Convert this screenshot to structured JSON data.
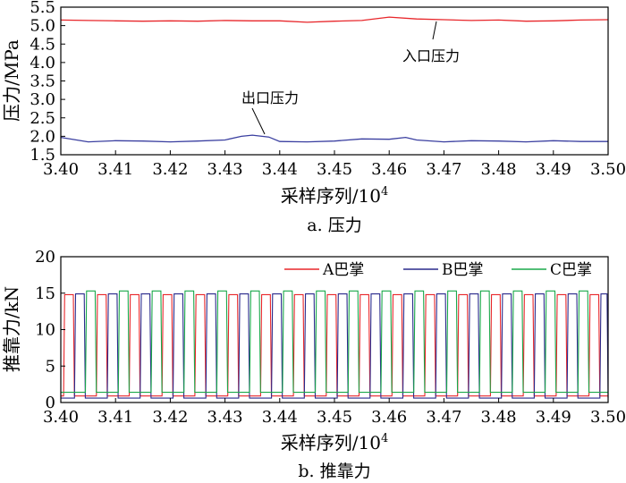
{
  "colors": {
    "inlet": "#e8262a",
    "outlet": "#3a3fa0",
    "shoe_a": "#e8262a",
    "shoe_b": "#2a2a8c",
    "shoe_c": "#1aa84a"
  },
  "chart_data": [
    {
      "type": "line",
      "caption": "a. 压力",
      "xlabel": "采样序列/10",
      "xlabel_exp": "4",
      "ylabel": "压力/MPa",
      "xlim": [
        3.4,
        3.5
      ],
      "ylim": [
        1.5,
        5.5
      ],
      "x_ticks": [
        "3.40",
        "3.41",
        "3.42",
        "3.43",
        "3.44",
        "3.45",
        "3.46",
        "3.47",
        "3.48",
        "3.49",
        "3.50"
      ],
      "y_ticks": [
        "1.5",
        "2.0",
        "2.5",
        "3.0",
        "3.5",
        "4.0",
        "4.5",
        "5.0",
        "5.5"
      ],
      "annotations": [
        {
          "text": "入口压力",
          "points_to_series": 0
        },
        {
          "text": "出口压力",
          "points_to_series": 1
        }
      ],
      "series": [
        {
          "name": "入口压力",
          "color_key": "inlet",
          "x": [
            3.4,
            3.405,
            3.41,
            3.415,
            3.42,
            3.425,
            3.43,
            3.435,
            3.44,
            3.445,
            3.45,
            3.455,
            3.46,
            3.465,
            3.47,
            3.475,
            3.48,
            3.485,
            3.49,
            3.495,
            3.5
          ],
          "y": [
            5.15,
            5.14,
            5.13,
            5.12,
            5.13,
            5.12,
            5.14,
            5.13,
            5.13,
            5.09,
            5.12,
            5.14,
            5.23,
            5.18,
            5.16,
            5.14,
            5.15,
            5.12,
            5.13,
            5.15,
            5.16
          ]
        },
        {
          "name": "出口压力",
          "color_key": "outlet",
          "x": [
            3.4,
            3.405,
            3.41,
            3.415,
            3.42,
            3.425,
            3.43,
            3.433,
            3.435,
            3.438,
            3.44,
            3.445,
            3.45,
            3.455,
            3.46,
            3.463,
            3.465,
            3.47,
            3.475,
            3.48,
            3.485,
            3.49,
            3.495,
            3.5
          ],
          "y": [
            1.97,
            1.85,
            1.88,
            1.87,
            1.85,
            1.87,
            1.9,
            2.0,
            2.03,
            1.98,
            1.86,
            1.85,
            1.87,
            1.93,
            1.92,
            1.97,
            1.9,
            1.85,
            1.88,
            1.87,
            1.85,
            1.88,
            1.86,
            1.86
          ]
        }
      ]
    },
    {
      "type": "line",
      "caption": "b. 推靠力",
      "xlabel": "采样序列/10",
      "xlabel_exp": "4",
      "ylabel": "推靠力/kN",
      "xlim": [
        3.4,
        3.5
      ],
      "ylim": [
        0,
        20
      ],
      "x_ticks": [
        "3.40",
        "3.41",
        "3.42",
        "3.43",
        "3.44",
        "3.45",
        "3.46",
        "3.47",
        "3.48",
        "3.49",
        "3.50"
      ],
      "y_ticks": [
        "0",
        "5",
        "10",
        "15",
        "20"
      ],
      "legend_position": "top",
      "pulse_train": {
        "period": 0.006,
        "high_fraction": 0.33,
        "first_start": 3.4005
      },
      "series": [
        {
          "name": "A巴掌",
          "color_key": "shoe_a",
          "phase": 0.0,
          "high": 14.8,
          "low": 0.9
        },
        {
          "name": "B巴掌",
          "color_key": "shoe_b",
          "phase": 0.3333,
          "high": 14.9,
          "low": 0.6
        },
        {
          "name": "C巴掌",
          "color_key": "shoe_c",
          "phase": 0.6667,
          "high": 15.3,
          "low": 1.4
        }
      ]
    }
  ]
}
